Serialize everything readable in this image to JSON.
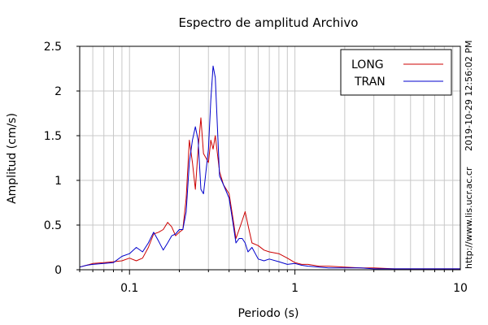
{
  "chart_data": {
    "type": "line",
    "title": "Espectro de amplitud Archivo",
    "xlabel": "Periodo (s)",
    "ylabel": "Amplitud (cm/s)",
    "x_scale": "log",
    "xlim": [
      0.05,
      10
    ],
    "ylim": [
      0,
      2.5
    ],
    "x_ticks": [
      {
        "value": 0.1,
        "label": "0.1"
      },
      {
        "value": 1,
        "label": "1"
      },
      {
        "value": 10,
        "label": "10"
      }
    ],
    "y_ticks": [
      {
        "value": 0,
        "label": "0"
      },
      {
        "value": 0.5,
        "label": "0.5"
      },
      {
        "value": 1,
        "label": "1"
      },
      {
        "value": 1.5,
        "label": "1.5"
      },
      {
        "value": 2,
        "label": "2"
      },
      {
        "value": 2.5,
        "label": "2.5"
      }
    ],
    "grid": true,
    "legend_position": "top-right",
    "series": [
      {
        "name": "LONG",
        "color": "#cc0000",
        "points": [
          [
            0.05,
            0.03
          ],
          [
            0.055,
            0.05
          ],
          [
            0.06,
            0.07
          ],
          [
            0.07,
            0.08
          ],
          [
            0.08,
            0.09
          ],
          [
            0.09,
            0.1
          ],
          [
            0.1,
            0.13
          ],
          [
            0.11,
            0.1
          ],
          [
            0.12,
            0.13
          ],
          [
            0.13,
            0.25
          ],
          [
            0.14,
            0.4
          ],
          [
            0.15,
            0.42
          ],
          [
            0.16,
            0.45
          ],
          [
            0.17,
            0.53
          ],
          [
            0.18,
            0.48
          ],
          [
            0.19,
            0.38
          ],
          [
            0.2,
            0.42
          ],
          [
            0.21,
            0.45
          ],
          [
            0.22,
            0.8
          ],
          [
            0.23,
            1.45
          ],
          [
            0.24,
            1.2
          ],
          [
            0.25,
            0.9
          ],
          [
            0.26,
            1.35
          ],
          [
            0.27,
            1.7
          ],
          [
            0.28,
            1.3
          ],
          [
            0.3,
            1.2
          ],
          [
            0.31,
            1.45
          ],
          [
            0.32,
            1.35
          ],
          [
            0.33,
            1.5
          ],
          [
            0.34,
            1.3
          ],
          [
            0.35,
            1.1
          ],
          [
            0.37,
            0.95
          ],
          [
            0.4,
            0.85
          ],
          [
            0.42,
            0.6
          ],
          [
            0.44,
            0.35
          ],
          [
            0.46,
            0.45
          ],
          [
            0.48,
            0.55
          ],
          [
            0.5,
            0.65
          ],
          [
            0.52,
            0.5
          ],
          [
            0.55,
            0.3
          ],
          [
            0.6,
            0.27
          ],
          [
            0.65,
            0.22
          ],
          [
            0.7,
            0.2
          ],
          [
            0.8,
            0.18
          ],
          [
            0.9,
            0.13
          ],
          [
            1.0,
            0.08
          ],
          [
            1.1,
            0.06
          ],
          [
            1.2,
            0.06
          ],
          [
            1.4,
            0.04
          ],
          [
            1.6,
            0.04
          ],
          [
            2.0,
            0.03
          ],
          [
            2.5,
            0.02
          ],
          [
            3.0,
            0.02
          ],
          [
            4.0,
            0.01
          ],
          [
            6.0,
            0.01
          ],
          [
            8.0,
            0.01
          ],
          [
            10.0,
            0.01
          ]
        ]
      },
      {
        "name": "TRAN",
        "color": "#0000cc",
        "points": [
          [
            0.05,
            0.03
          ],
          [
            0.055,
            0.05
          ],
          [
            0.06,
            0.06
          ],
          [
            0.07,
            0.07
          ],
          [
            0.08,
            0.08
          ],
          [
            0.09,
            0.15
          ],
          [
            0.1,
            0.18
          ],
          [
            0.11,
            0.25
          ],
          [
            0.12,
            0.2
          ],
          [
            0.13,
            0.3
          ],
          [
            0.14,
            0.42
          ],
          [
            0.15,
            0.32
          ],
          [
            0.16,
            0.22
          ],
          [
            0.17,
            0.3
          ],
          [
            0.18,
            0.38
          ],
          [
            0.19,
            0.4
          ],
          [
            0.2,
            0.45
          ],
          [
            0.21,
            0.45
          ],
          [
            0.22,
            0.65
          ],
          [
            0.23,
            1.2
          ],
          [
            0.24,
            1.45
          ],
          [
            0.25,
            1.6
          ],
          [
            0.26,
            1.45
          ],
          [
            0.27,
            0.9
          ],
          [
            0.28,
            0.85
          ],
          [
            0.3,
            1.35
          ],
          [
            0.31,
            1.9
          ],
          [
            0.32,
            2.28
          ],
          [
            0.33,
            2.15
          ],
          [
            0.34,
            1.6
          ],
          [
            0.35,
            1.05
          ],
          [
            0.37,
            0.95
          ],
          [
            0.4,
            0.8
          ],
          [
            0.42,
            0.55
          ],
          [
            0.44,
            0.3
          ],
          [
            0.46,
            0.35
          ],
          [
            0.48,
            0.35
          ],
          [
            0.5,
            0.3
          ],
          [
            0.52,
            0.2
          ],
          [
            0.55,
            0.25
          ],
          [
            0.6,
            0.12
          ],
          [
            0.65,
            0.1
          ],
          [
            0.7,
            0.12
          ],
          [
            0.8,
            0.09
          ],
          [
            0.9,
            0.06
          ],
          [
            1.0,
            0.07
          ],
          [
            1.1,
            0.05
          ],
          [
            1.2,
            0.04
          ],
          [
            1.4,
            0.03
          ],
          [
            1.6,
            0.02
          ],
          [
            2.0,
            0.02
          ],
          [
            2.5,
            0.02
          ],
          [
            3.0,
            0.01
          ],
          [
            4.0,
            0.01
          ],
          [
            6.0,
            0.01
          ],
          [
            8.0,
            0.01
          ],
          [
            10.0,
            0.01
          ]
        ]
      }
    ]
  },
  "side": {
    "url": "http://www.lis.ucr.ac.cr",
    "timestamp": "2019-10-29 12:56:02 PM"
  }
}
